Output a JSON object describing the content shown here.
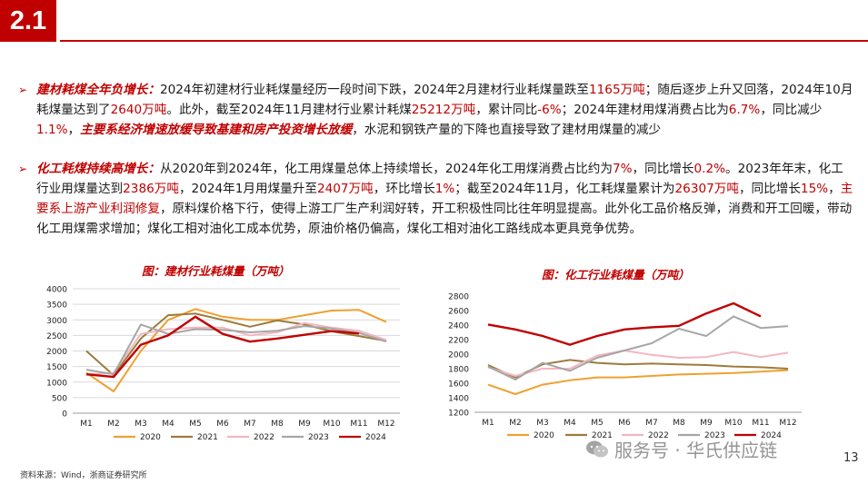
{
  "section_number": "2.1",
  "paragraphs": [
    {
      "segments": [
        {
          "t": "建材耗煤全年负增长：",
          "s": "hl"
        },
        {
          "t": "2024年初建材行业耗煤量经历一段时间下跌，2024年2月建材行业耗煤量跌至",
          "s": ""
        },
        {
          "t": "1165万吨",
          "s": "red"
        },
        {
          "t": "；随后逐步上升又回落，2024年10月耗煤量达到了",
          "s": ""
        },
        {
          "t": "2640万吨",
          "s": "red"
        },
        {
          "t": "。此外，截至2024年11月建材行业累计耗煤",
          "s": ""
        },
        {
          "t": "25212万吨",
          "s": "red"
        },
        {
          "t": "，累计同比",
          "s": ""
        },
        {
          "t": "-6%",
          "s": "red"
        },
        {
          "t": "；2024年建材用煤消费占比为",
          "s": ""
        },
        {
          "t": "6.7%",
          "s": "red"
        },
        {
          "t": "，同比减少",
          "s": ""
        },
        {
          "t": "1.1%",
          "s": "red"
        },
        {
          "t": "，",
          "s": ""
        },
        {
          "t": "主要系经济增速放缓导致基建和房产投资增长放缓",
          "s": "hl"
        },
        {
          "t": "，水泥和钢铁产量的下降也直接导致了建材用煤量的减少",
          "s": ""
        }
      ]
    },
    {
      "segments": [
        {
          "t": "化工耗煤持续高增长：",
          "s": "hl"
        },
        {
          "t": "从2020年到2024年，化工用煤量总体上持续增长，2024年化工用煤消费占比约为",
          "s": ""
        },
        {
          "t": "7%",
          "s": "red"
        },
        {
          "t": "，同比增长",
          "s": ""
        },
        {
          "t": "0.2%",
          "s": "red"
        },
        {
          "t": "。2023年年末，化工行业用煤量达到",
          "s": ""
        },
        {
          "t": "2386万吨",
          "s": "red"
        },
        {
          "t": "，2024年1月用煤量升至",
          "s": ""
        },
        {
          "t": "2407万吨",
          "s": "red"
        },
        {
          "t": "，环比增长",
          "s": ""
        },
        {
          "t": "1%",
          "s": "red"
        },
        {
          "t": "；截至2024年11月，化工耗煤量累计为",
          "s": ""
        },
        {
          "t": "26307万吨",
          "s": "red"
        },
        {
          "t": "，同比增长",
          "s": ""
        },
        {
          "t": "15%",
          "s": "red"
        },
        {
          "t": "，",
          "s": ""
        },
        {
          "t": "主要系上游产业利润修复",
          "s": "red"
        },
        {
          "t": "，原料煤价格下行，使得上游工厂生产利润好转，开工积极性同比往年明显提高。此外化工品价格反弹，消费和开工回暖，带动化工用煤需求增加；煤化工相对油化工成本优势，原油价格仍偏高，煤化工相对油化工路线成本更具竞争优势。",
          "s": ""
        }
      ]
    }
  ],
  "source_note": "资料来源：Wind，浙商证券研究所",
  "page_number": "13",
  "watermark_text": "服务号 · 华氏供应链",
  "colors": {
    "accent": "#c00000",
    "y2020": "#f0a030",
    "y2021": "#9c7c3c",
    "y2022": "#f4b6c2",
    "y2023": "#a6a6a6",
    "y2024": "#c00000"
  },
  "chart_data": [
    {
      "type": "line",
      "title": "图：建材行业耗煤量（万吨）",
      "categories": [
        "M1",
        "M2",
        "M3",
        "M4",
        "M5",
        "M6",
        "M7",
        "M8",
        "M9",
        "M10",
        "M11",
        "M12"
      ],
      "ylim": [
        0,
        4000
      ],
      "yticks": [
        0,
        500,
        1000,
        1500,
        2000,
        2500,
        3000,
        3500,
        4000
      ],
      "grid": true,
      "legend": "bottom",
      "series": [
        {
          "name": "2020",
          "color_key": "y2020",
          "values": [
            1300,
            700,
            2000,
            3000,
            3350,
            3100,
            3000,
            3000,
            3150,
            3300,
            3320,
            2930
          ]
        },
        {
          "name": "2021",
          "color_key": "y2021",
          "values": [
            2000,
            1220,
            2400,
            3150,
            3200,
            3000,
            2780,
            2980,
            2850,
            2630,
            2480,
            2320
          ]
        },
        {
          "name": "2022",
          "color_key": "y2022",
          "values": [
            1250,
            1300,
            2550,
            2700,
            2750,
            2750,
            2500,
            2600,
            2900,
            2750,
            2650,
            2350
          ]
        },
        {
          "name": "2023",
          "color_key": "y2023",
          "values": [
            1400,
            1250,
            2850,
            2550,
            2700,
            2680,
            2600,
            2650,
            2800,
            2720,
            2580,
            2300
          ]
        },
        {
          "name": "2024",
          "color_key": "y2024",
          "values": [
            1250,
            1165,
            2200,
            2500,
            3100,
            2550,
            2300,
            2400,
            2520,
            2640,
            2560,
            null
          ]
        }
      ]
    },
    {
      "type": "line",
      "title": "图：化工行业耗煤量（万吨）",
      "categories": [
        "M1",
        "M2",
        "M3",
        "M4",
        "M5",
        "M6",
        "M7",
        "M8",
        "M9",
        "M10",
        "M11",
        "M12"
      ],
      "ylim": [
        1200,
        2800
      ],
      "yticks": [
        1200,
        1400,
        1600,
        1800,
        2000,
        2200,
        2400,
        2600,
        2800
      ],
      "grid": false,
      "legend": "bottom",
      "series": [
        {
          "name": "2020",
          "color_key": "y2020",
          "values": [
            1580,
            1450,
            1580,
            1640,
            1680,
            1680,
            1700,
            1720,
            1730,
            1740,
            1760,
            1780
          ]
        },
        {
          "name": "2021",
          "color_key": "y2021",
          "values": [
            1850,
            1680,
            1860,
            1920,
            1880,
            1860,
            1870,
            1860,
            1850,
            1830,
            1820,
            1800
          ]
        },
        {
          "name": "2022",
          "color_key": "y2022",
          "values": [
            1820,
            1700,
            1800,
            1800,
            1980,
            2050,
            1990,
            1950,
            1960,
            2030,
            1960,
            2020
          ]
        },
        {
          "name": "2023",
          "color_key": "y2023",
          "values": [
            1830,
            1650,
            1880,
            1770,
            1950,
            2050,
            2150,
            2350,
            2250,
            2520,
            2360,
            2386
          ]
        },
        {
          "name": "2024",
          "color_key": "y2024",
          "values": [
            2407,
            2340,
            2250,
            2130,
            2250,
            2340,
            2370,
            2390,
            2560,
            2700,
            2520,
            null
          ]
        }
      ]
    }
  ]
}
